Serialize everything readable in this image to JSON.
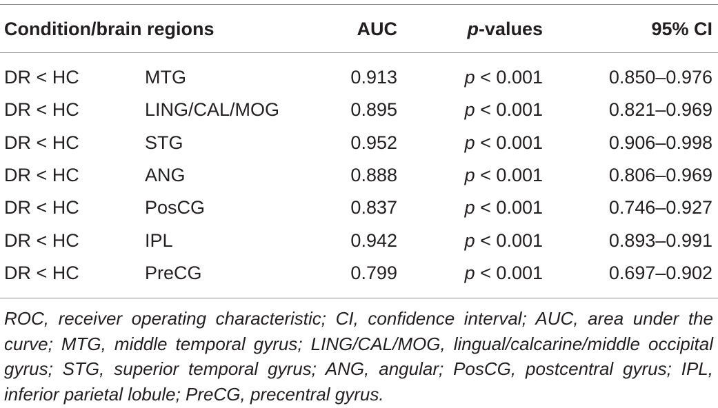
{
  "table": {
    "headers": {
      "condition": "Condition/brain regions",
      "auc": "AUC",
      "p_italic": "p",
      "p_rest": "-values",
      "ci": "95% CI"
    },
    "rows": [
      {
        "condition": "DR < HC",
        "region": "MTG",
        "auc": "0.913",
        "p_italic": "p",
        "p_rest": " < 0.001",
        "ci": "0.850–0.976"
      },
      {
        "condition": "DR < HC",
        "region": "LING/CAL/MOG",
        "auc": "0.895",
        "p_italic": "p",
        "p_rest": " < 0.001",
        "ci": "0.821–0.969"
      },
      {
        "condition": "DR < HC",
        "region": "STG",
        "auc": "0.952",
        "p_italic": "p",
        "p_rest": " < 0.001",
        "ci": "0.906–0.998"
      },
      {
        "condition": "DR < HC",
        "region": "ANG",
        "auc": "0.888",
        "p_italic": "p",
        "p_rest": " < 0.001",
        "ci": "0.806–0.969"
      },
      {
        "condition": "DR < HC",
        "region": "PosCG",
        "auc": "0.837",
        "p_italic": "p",
        "p_rest": " < 0.001",
        "ci": "0.746–0.927"
      },
      {
        "condition": "DR < HC",
        "region": "IPL",
        "auc": "0.942",
        "p_italic": "p",
        "p_rest": " < 0.001",
        "ci": "0.893–0.991"
      },
      {
        "condition": "DR < HC",
        "region": "PreCG",
        "auc": "0.799",
        "p_italic": "p",
        "p_rest": " < 0.001",
        "ci": "0.697–0.902"
      }
    ],
    "footnote": "ROC, receiver operating characteristic; CI, confidence interval; AUC, area under the curve; MTG, middle temporal gyrus; LING/CAL/MOG, lingual/calcarine/middle occipital gyrus; STG, superior temporal gyrus; ANG, angular; PosCG, postcentral gyrus; IPL, inferior parietal lobule; PreCG, precentral gyrus."
  }
}
